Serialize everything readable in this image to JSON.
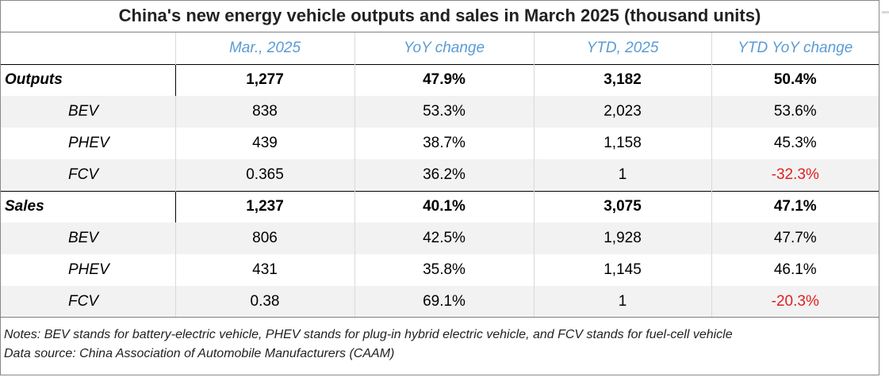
{
  "chart_data": {
    "type": "table",
    "title": "China's new energy vehicle outputs and sales in March 2025 (thousand units)",
    "columns": [
      "",
      "Mar., 2025",
      "YoY change",
      "YTD, 2025",
      "YTD YoY change"
    ],
    "rows": [
      {
        "label": "Outputs",
        "level": "group",
        "values": [
          "1,277",
          "47.9%",
          "3,182",
          "50.4%"
        ],
        "negative": [
          false,
          false,
          false,
          false
        ]
      },
      {
        "label": "BEV",
        "level": "sub",
        "values": [
          "838",
          "53.3%",
          "2,023",
          "53.6%"
        ],
        "negative": [
          false,
          false,
          false,
          false
        ]
      },
      {
        "label": "PHEV",
        "level": "sub",
        "values": [
          "439",
          "38.7%",
          "1,158",
          "45.3%"
        ],
        "negative": [
          false,
          false,
          false,
          false
        ]
      },
      {
        "label": "FCV",
        "level": "sub",
        "values": [
          "0.365",
          "36.2%",
          "1",
          "-32.3%"
        ],
        "negative": [
          false,
          false,
          false,
          true
        ]
      },
      {
        "label": "Sales",
        "level": "group",
        "values": [
          "1,237",
          "40.1%",
          "3,075",
          "47.1%"
        ],
        "negative": [
          false,
          false,
          false,
          false
        ]
      },
      {
        "label": "BEV",
        "level": "sub",
        "values": [
          "806",
          "42.5%",
          "1,928",
          "47.7%"
        ],
        "negative": [
          false,
          false,
          false,
          false
        ]
      },
      {
        "label": "PHEV",
        "level": "sub",
        "values": [
          "431",
          "35.8%",
          "1,145",
          "46.1%"
        ],
        "negative": [
          false,
          false,
          false,
          false
        ]
      },
      {
        "label": "FCV",
        "level": "sub",
        "values": [
          "0.38",
          "69.1%",
          "1",
          "-20.3%"
        ],
        "negative": [
          false,
          false,
          false,
          true
        ]
      }
    ],
    "notes": "Notes: BEV stands for battery-electric vehicle, PHEV stands for plug-in hybrid electric vehicle, and FCV stands for fuel-cell vehicle",
    "source": "Data source: China Association of Automobile Manufacturers (CAAM)"
  },
  "colors": {
    "header_text": "#5b9bd5",
    "negative_text": "#e02020",
    "shaded_row": "#f2f2f2"
  }
}
